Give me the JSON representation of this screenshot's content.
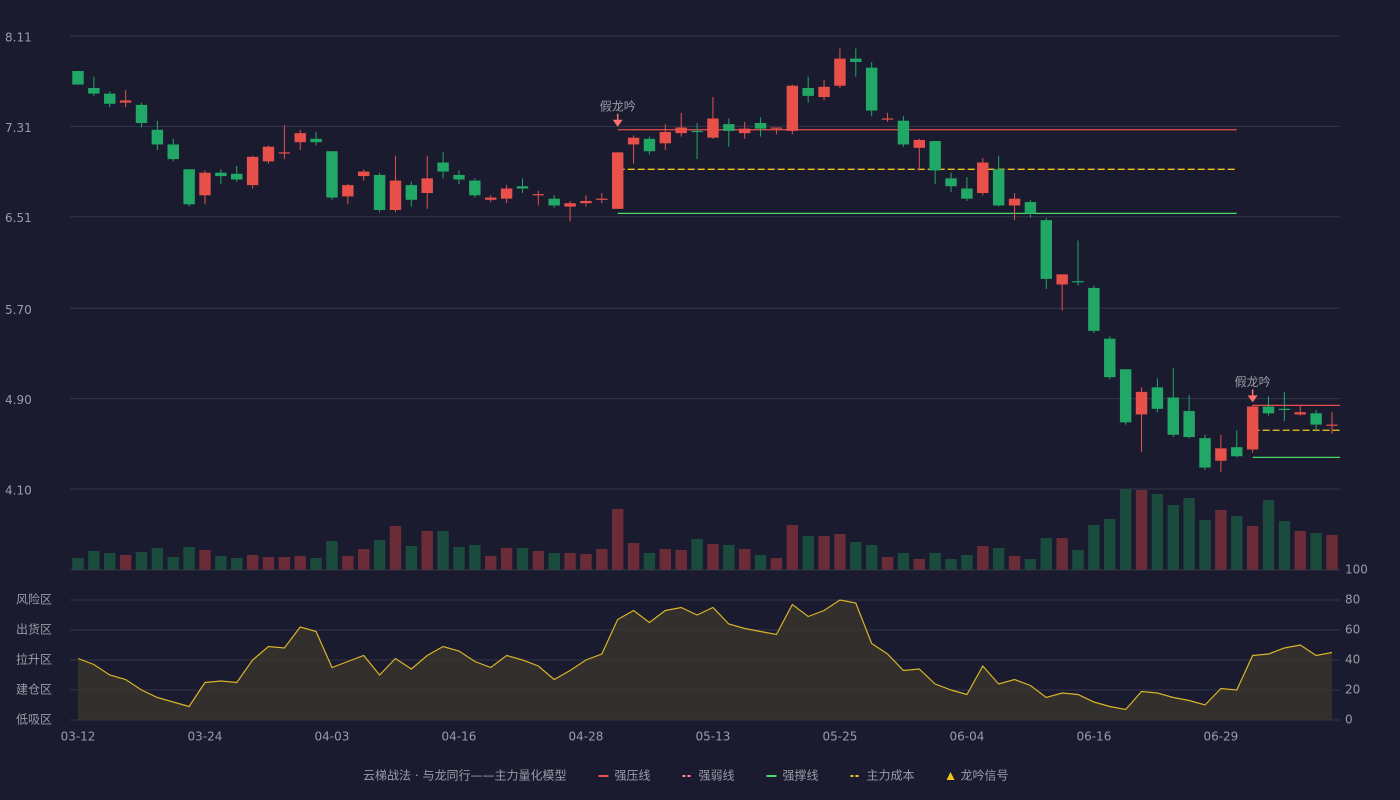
{
  "chart_data": [
    {
      "type": "candlestick",
      "categories": [
        "03-12",
        null,
        null,
        null,
        null,
        null,
        null,
        null,
        "03-24",
        null,
        null,
        null,
        null,
        null,
        null,
        null,
        "04-03",
        null,
        null,
        null,
        null,
        null,
        null,
        null,
        "04-16",
        null,
        null,
        null,
        null,
        null,
        null,
        null,
        "04-28",
        null,
        null,
        null,
        null,
        null,
        null,
        null,
        "05-13",
        null,
        null,
        null,
        null,
        null,
        null,
        null,
        "05-25",
        null,
        null,
        null,
        null,
        null,
        null,
        null,
        "06-04",
        null,
        null,
        null,
        null,
        null,
        null,
        null,
        "06-16",
        null,
        null,
        null,
        null,
        null,
        null,
        null,
        "06-29",
        null,
        null,
        null,
        null,
        null,
        null,
        null
      ],
      "open": [
        7.8,
        7.65,
        7.6,
        7.52,
        7.5,
        7.28,
        7.15,
        6.93,
        6.7,
        6.9,
        6.89,
        6.79,
        7.0,
        7.07,
        7.17,
        7.2,
        7.09,
        6.69,
        6.87,
        6.88,
        6.57,
        6.79,
        6.72,
        6.99,
        6.88,
        6.83,
        6.66,
        6.67,
        6.78,
        6.7,
        6.67,
        6.6,
        6.63,
        6.66,
        6.58,
        7.15,
        7.2,
        7.16,
        7.25,
        7.27,
        7.21,
        7.33,
        7.25,
        7.34,
        7.29,
        7.27,
        7.65,
        7.57,
        7.67,
        7.91,
        7.83,
        7.37,
        7.36,
        7.12,
        7.18,
        6.85,
        6.76,
        6.72,
        6.93,
        6.61,
        6.64,
        6.48,
        5.91,
        5.94,
        5.88,
        5.43,
        5.16,
        4.76,
        5.0,
        4.91,
        4.79,
        4.55,
        4.35,
        4.47,
        4.45,
        4.83,
        4.81,
        4.76,
        4.77,
        4.66
      ],
      "high": [
        7.8,
        7.75,
        7.62,
        7.63,
        7.52,
        7.36,
        7.2,
        6.93,
        6.92,
        6.93,
        6.96,
        7.05,
        7.14,
        7.32,
        7.28,
        7.26,
        7.09,
        6.8,
        6.93,
        6.9,
        7.05,
        6.82,
        7.05,
        7.08,
        6.92,
        6.85,
        6.7,
        6.79,
        6.85,
        6.74,
        6.7,
        6.65,
        6.7,
        6.72,
        7.08,
        7.23,
        7.22,
        7.33,
        7.43,
        7.34,
        7.57,
        7.38,
        7.35,
        7.39,
        7.3,
        7.68,
        7.75,
        7.72,
        8.0,
        8.0,
        7.88,
        7.43,
        7.4,
        7.2,
        7.18,
        6.9,
        6.86,
        7.03,
        7.05,
        6.72,
        6.66,
        6.5,
        6.0,
        6.3,
        5.9,
        5.45,
        5.16,
        5.0,
        5.08,
        5.17,
        4.93,
        4.58,
        4.58,
        4.62,
        4.84,
        4.92,
        4.96,
        4.84,
        4.8,
        4.78
      ],
      "low": [
        7.68,
        7.58,
        7.48,
        7.48,
        7.3,
        7.1,
        7.0,
        6.6,
        6.62,
        6.8,
        6.82,
        6.76,
        6.98,
        7.02,
        7.1,
        7.14,
        6.66,
        6.62,
        6.83,
        6.55,
        6.55,
        6.6,
        6.58,
        6.85,
        6.8,
        6.68,
        6.64,
        6.63,
        6.72,
        6.61,
        6.59,
        6.47,
        6.6,
        6.63,
        6.58,
        6.98,
        7.06,
        7.1,
        7.22,
        7.02,
        7.2,
        7.13,
        7.2,
        7.22,
        7.24,
        7.24,
        7.52,
        7.54,
        7.65,
        7.75,
        7.4,
        7.35,
        7.13,
        6.92,
        6.8,
        6.73,
        6.65,
        6.7,
        6.6,
        6.48,
        6.5,
        5.87,
        5.68,
        5.9,
        5.48,
        5.07,
        4.67,
        4.43,
        4.78,
        4.56,
        4.55,
        4.27,
        4.25,
        4.38,
        4.42,
        4.75,
        4.7,
        4.75,
        4.61,
        4.59
      ],
      "close": [
        7.68,
        7.6,
        7.51,
        7.54,
        7.34,
        7.15,
        7.02,
        6.62,
        6.9,
        6.87,
        6.84,
        7.04,
        7.13,
        7.08,
        7.25,
        7.17,
        6.68,
        6.79,
        6.91,
        6.57,
        6.83,
        6.66,
        6.85,
        6.91,
        6.84,
        6.7,
        6.68,
        6.76,
        6.76,
        6.71,
        6.61,
        6.63,
        6.65,
        6.67,
        7.08,
        7.21,
        7.09,
        7.26,
        7.3,
        7.26,
        7.38,
        7.27,
        7.29,
        7.29,
        7.3,
        7.67,
        7.58,
        7.66,
        7.91,
        7.88,
        7.45,
        7.38,
        7.15,
        7.19,
        6.92,
        6.78,
        6.67,
        6.99,
        6.61,
        6.67,
        6.54,
        5.96,
        6.0,
        5.93,
        5.5,
        5.09,
        4.69,
        4.96,
        4.81,
        4.58,
        4.56,
        4.29,
        4.46,
        4.39,
        4.83,
        4.77,
        4.8,
        4.78,
        4.67,
        4.67
      ],
      "up_color": "#e8504a",
      "down_color": "#22a866",
      "ylim": [
        4.1,
        8.11
      ],
      "yticks": [
        8.11,
        7.31,
        6.51,
        {
          "value": 5.7,
          "label": "5.70"
        },
        {
          "value": 4.9,
          "label": "4.90"
        },
        {
          "value": 4.1,
          "label": "4.10"
        }
      ],
      "grid": true,
      "levels": [
        {
          "name": "强压线",
          "color": "#e8504a",
          "dash": false,
          "segments": [
            {
              "start": 34,
              "end": 73,
              "value": 7.28
            },
            {
              "start": 74,
              "end": 79,
              "value": 4.84
            }
          ]
        },
        {
          "name": "强弱线",
          "color": "#ff8a8a",
          "dash": true
        },
        {
          "name": "强撑线",
          "color": "#4cd964",
          "dash": false,
          "segments": [
            {
              "start": 34,
              "end": 73,
              "value": 6.54
            },
            {
              "start": 74,
              "end": 79,
              "value": 4.38
            }
          ]
        },
        {
          "name": "主力成本",
          "color": "#f5c518",
          "dash": true,
          "segments": [
            {
              "start": 34,
              "end": 73,
              "value": 6.93
            },
            {
              "start": 74,
              "end": 79,
              "value": 4.62
            }
          ]
        }
      ],
      "signals": {
        "name": "龙吟信号",
        "color": "#f5c518",
        "label_color": "#ff7070",
        "points": [
          {
            "index": 34,
            "label": "假龙吟"
          },
          {
            "index": 74,
            "label": "假龙吟"
          }
        ]
      }
    },
    {
      "type": "bar",
      "values": [
        12,
        19,
        17,
        15,
        18,
        22,
        13,
        23,
        20,
        14,
        12,
        15,
        13,
        13,
        14,
        12,
        29,
        14,
        21,
        30,
        44,
        24,
        39,
        39,
        23,
        25,
        14,
        22,
        22,
        19,
        17,
        17,
        16,
        21,
        61,
        27,
        17,
        21,
        20,
        31,
        26,
        25,
        21,
        15,
        12,
        45,
        34,
        34,
        36,
        28,
        25,
        13,
        17,
        11,
        17,
        11,
        15,
        24,
        22,
        14,
        11,
        32,
        32,
        20,
        45,
        51,
        81,
        80,
        76,
        65,
        72,
        50,
        60,
        54,
        44,
        70,
        49,
        39,
        37,
        35
      ],
      "up_color": "#6a2c37",
      "down_color": "#1b4b3d",
      "ylim": [
        0,
        81
      ]
    },
    {
      "type": "area",
      "values": [
        41,
        37,
        30,
        27,
        20,
        15,
        12,
        9,
        25,
        26,
        25,
        40,
        49,
        48,
        62,
        59,
        35,
        39,
        43,
        30,
        41,
        34,
        43,
        49,
        46,
        39,
        35,
        43,
        40,
        36,
        27,
        33,
        40,
        44,
        67,
        73,
        65,
        73,
        75,
        70,
        75,
        64,
        61,
        59,
        57,
        77,
        69,
        73,
        80,
        78,
        51,
        44,
        33,
        34,
        24,
        20,
        17,
        36,
        24,
        27,
        23,
        15,
        18,
        17,
        12,
        9,
        7,
        19,
        18,
        15,
        13,
        10,
        21,
        20,
        43,
        44,
        48,
        50,
        43,
        45
      ],
      "color": "#d8b428",
      "fill": "#3a352c",
      "ylim": [
        0,
        100
      ],
      "yticks": [
        0,
        20,
        40,
        60,
        80,
        100
      ],
      "ytick_colors": [
        "#e8504a",
        "#e8504a",
        "#4a90e2",
        "#e040e0",
        "#f0a030",
        "#4cd964"
      ],
      "zones": [
        {
          "label": "风险区",
          "value": 80,
          "color": "#f0a030"
        },
        {
          "label": "出货区",
          "value": 60,
          "color": "#e040e0"
        },
        {
          "label": "拉升区",
          "value": 40,
          "color": "#4a90e2"
        },
        {
          "label": "建仓区",
          "value": 20,
          "color": "#e8504a"
        },
        {
          "label": "低吸区",
          "value": 0,
          "color": "#e8504a"
        }
      ]
    }
  ],
  "legend": {
    "title": "云梯战法 · 与龙同行——主力量化模型",
    "color": "#f0c060"
  }
}
